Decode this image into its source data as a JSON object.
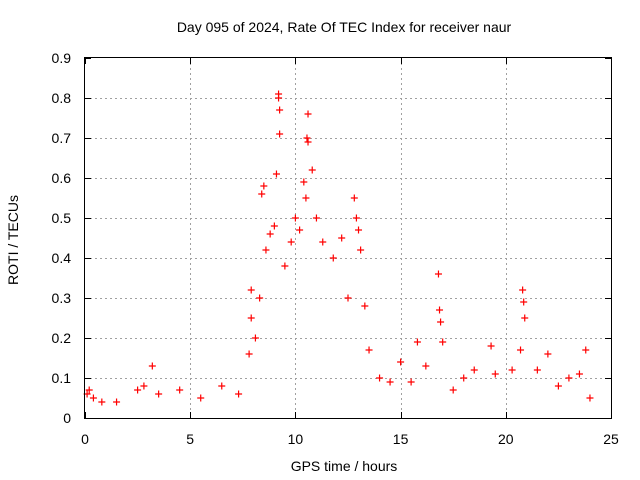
{
  "chart_data": {
    "type": "scatter",
    "title": "Day 095 of 2024, Rate Of TEC Index for receiver naur",
    "xlabel": "GPS time / hours",
    "ylabel": "ROTI / TECUs",
    "xlim": [
      0,
      25
    ],
    "ylim": [
      0,
      0.9
    ],
    "xticks": [
      0,
      5,
      10,
      15,
      20,
      25
    ],
    "xtick_labels": [
      "0",
      "5",
      "10",
      "15",
      "20",
      "25"
    ],
    "yticks": [
      0,
      0.1,
      0.2,
      0.3,
      0.4,
      0.5,
      0.6,
      0.7,
      0.8,
      0.9
    ],
    "ytick_labels": [
      "0",
      "0.1",
      "0.2",
      "0.3",
      "0.4",
      "0.5",
      "0.6",
      "0.7",
      "0.8",
      "0.9"
    ],
    "grid": true,
    "marker": "plus",
    "series_color": "#ff0000",
    "series": [
      {
        "name": "ROTI",
        "points": [
          [
            0.1,
            0.06
          ],
          [
            0.2,
            0.07
          ],
          [
            0.4,
            0.05
          ],
          [
            0.8,
            0.04
          ],
          [
            1.5,
            0.04
          ],
          [
            2.5,
            0.07
          ],
          [
            2.8,
            0.08
          ],
          [
            3.2,
            0.13
          ],
          [
            3.5,
            0.06
          ],
          [
            4.5,
            0.07
          ],
          [
            5.5,
            0.05
          ],
          [
            6.5,
            0.08
          ],
          [
            7.3,
            0.06
          ],
          [
            7.8,
            0.16
          ],
          [
            7.9,
            0.25
          ],
          [
            7.9,
            0.32
          ],
          [
            8.1,
            0.2
          ],
          [
            8.3,
            0.3
          ],
          [
            8.4,
            0.56
          ],
          [
            8.5,
            0.58
          ],
          [
            8.6,
            0.42
          ],
          [
            8.8,
            0.46
          ],
          [
            9.0,
            0.48
          ],
          [
            9.1,
            0.61
          ],
          [
            9.2,
            0.8
          ],
          [
            9.2,
            0.81
          ],
          [
            9.25,
            0.77
          ],
          [
            9.25,
            0.71
          ],
          [
            9.5,
            0.38
          ],
          [
            9.8,
            0.44
          ],
          [
            10.0,
            0.5
          ],
          [
            10.2,
            0.47
          ],
          [
            10.4,
            0.59
          ],
          [
            10.5,
            0.55
          ],
          [
            10.55,
            0.7
          ],
          [
            10.6,
            0.76
          ],
          [
            10.6,
            0.69
          ],
          [
            10.8,
            0.62
          ],
          [
            11.0,
            0.5
          ],
          [
            11.3,
            0.44
          ],
          [
            11.8,
            0.4
          ],
          [
            12.2,
            0.45
          ],
          [
            12.5,
            0.3
          ],
          [
            12.8,
            0.55
          ],
          [
            12.9,
            0.5
          ],
          [
            13.0,
            0.47
          ],
          [
            13.1,
            0.42
          ],
          [
            13.3,
            0.28
          ],
          [
            13.5,
            0.17
          ],
          [
            14.0,
            0.1
          ],
          [
            14.5,
            0.09
          ],
          [
            15.0,
            0.14
          ],
          [
            15.5,
            0.09
          ],
          [
            15.8,
            0.19
          ],
          [
            16.2,
            0.13
          ],
          [
            16.8,
            0.36
          ],
          [
            16.85,
            0.27
          ],
          [
            16.9,
            0.24
          ],
          [
            17.0,
            0.19
          ],
          [
            17.5,
            0.07
          ],
          [
            18.0,
            0.1
          ],
          [
            18.5,
            0.12
          ],
          [
            19.3,
            0.18
          ],
          [
            19.5,
            0.11
          ],
          [
            20.3,
            0.12
          ],
          [
            20.7,
            0.17
          ],
          [
            20.8,
            0.32
          ],
          [
            20.85,
            0.29
          ],
          [
            20.9,
            0.25
          ],
          [
            21.5,
            0.12
          ],
          [
            22.0,
            0.16
          ],
          [
            22.5,
            0.08
          ],
          [
            23.0,
            0.1
          ],
          [
            23.5,
            0.11
          ],
          [
            23.8,
            0.17
          ],
          [
            24.0,
            0.05
          ]
        ]
      }
    ]
  }
}
